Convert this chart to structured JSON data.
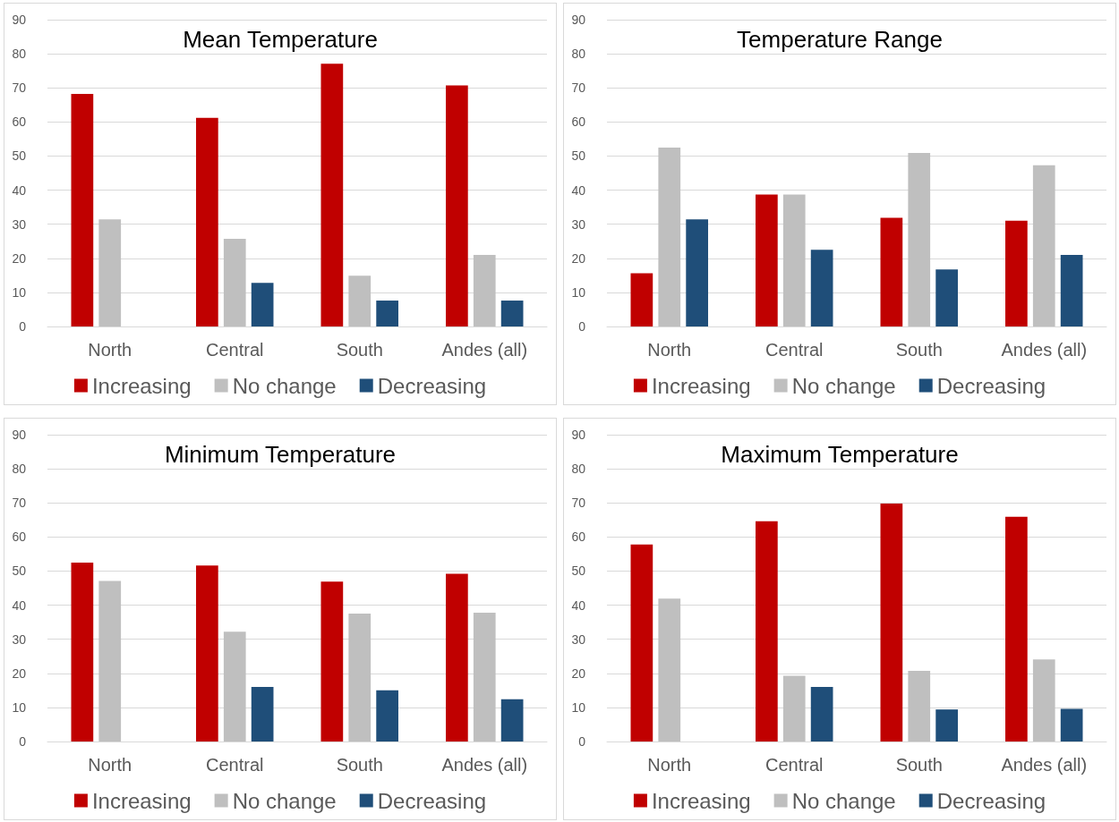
{
  "chart_data": [
    {
      "type": "bar",
      "title": "Mean Temperature",
      "categories": [
        "North",
        "Central",
        "South",
        "Andes (all)"
      ],
      "series": [
        {
          "name": "Increasing",
          "color": "#c00000",
          "values": [
            68.2,
            61.2,
            77.1,
            70.7
          ]
        },
        {
          "name": "No change",
          "color": "#bfbfbf",
          "values": [
            31.4,
            25.7,
            14.9,
            21.0
          ]
        },
        {
          "name": "Decreasing",
          "color": "#1f4e79",
          "values": [
            0,
            12.8,
            7.6,
            7.6
          ]
        }
      ],
      "ylim": [
        0,
        90
      ],
      "yticks": [
        0,
        10,
        20,
        30,
        40,
        50,
        60,
        70,
        80,
        90
      ],
      "grid": "y",
      "legend": "bottom"
    },
    {
      "type": "bar",
      "title": "Temperature Range",
      "categories": [
        "North",
        "Central",
        "South",
        "Andes (all)"
      ],
      "series": [
        {
          "name": "Increasing",
          "color": "#c00000",
          "values": [
            15.6,
            38.7,
            31.9,
            31.0
          ]
        },
        {
          "name": "No change",
          "color": "#bfbfbf",
          "values": [
            52.5,
            38.7,
            50.9,
            47.3
          ]
        },
        {
          "name": "Decreasing",
          "color": "#1f4e79",
          "values": [
            31.4,
            22.5,
            16.7,
            21.0
          ]
        }
      ],
      "ylim": [
        0,
        90
      ],
      "yticks": [
        0,
        10,
        20,
        30,
        40,
        50,
        60,
        70,
        80,
        90
      ],
      "grid": "y",
      "legend": "bottom"
    },
    {
      "type": "bar",
      "title": "Minimum Temperature",
      "categories": [
        "North",
        "Central",
        "South",
        "Andes (all)"
      ],
      "series": [
        {
          "name": "Increasing",
          "color": "#c00000",
          "values": [
            52.5,
            51.6,
            46.9,
            49.2
          ]
        },
        {
          "name": "No change",
          "color": "#bfbfbf",
          "values": [
            47.1,
            32.2,
            37.5,
            37.8
          ]
        },
        {
          "name": "Decreasing",
          "color": "#1f4e79",
          "values": [
            0,
            16.0,
            15.0,
            12.4
          ]
        }
      ],
      "ylim": [
        0,
        90
      ],
      "yticks": [
        0,
        10,
        20,
        30,
        40,
        50,
        60,
        70,
        80,
        90
      ],
      "grid": "y",
      "legend": "bottom"
    },
    {
      "type": "bar",
      "title": "Maximum Temperature",
      "categories": [
        "North",
        "Central",
        "South",
        "Andes (all)"
      ],
      "series": [
        {
          "name": "Increasing",
          "color": "#c00000",
          "values": [
            57.8,
            64.6,
            69.8,
            65.9
          ]
        },
        {
          "name": "No change",
          "color": "#bfbfbf",
          "values": [
            41.9,
            19.3,
            20.7,
            24.1
          ]
        },
        {
          "name": "Decreasing",
          "color": "#1f4e79",
          "values": [
            0,
            16.0,
            9.4,
            9.6
          ]
        }
      ],
      "ylim": [
        0,
        90
      ],
      "yticks": [
        0,
        10,
        20,
        30,
        40,
        50,
        60,
        70,
        80,
        90
      ],
      "grid": "y",
      "legend": "bottom"
    }
  ]
}
